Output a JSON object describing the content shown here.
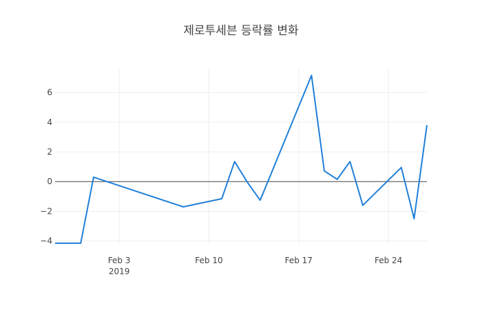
{
  "chart_data": {
    "type": "line",
    "title": "제로투세븐 등락률 변화",
    "xlabel": "",
    "ylabel": "",
    "x_ticks": [
      {
        "date": "2019-02-03",
        "label": "Feb 3",
        "sublabel": "2019"
      },
      {
        "date": "2019-02-10",
        "label": "Feb 10",
        "sublabel": ""
      },
      {
        "date": "2019-02-17",
        "label": "Feb 17",
        "sublabel": ""
      },
      {
        "date": "2019-02-24",
        "label": "Feb 24",
        "sublabel": ""
      }
    ],
    "y_ticks": [
      {
        "value": -4,
        "label": "−4"
      },
      {
        "value": -2,
        "label": "−2"
      },
      {
        "value": 0,
        "label": "0"
      },
      {
        "value": 2,
        "label": "2"
      },
      {
        "value": 4,
        "label": "4"
      },
      {
        "value": 6,
        "label": "6"
      }
    ],
    "xlim": [
      "2019-01-29",
      "2019-02-27"
    ],
    "ylim": [
      -4.2,
      7.6
    ],
    "grid": true,
    "zero_line": true,
    "line_color": "#1f7fd8",
    "series": [
      {
        "x": [
          "2019-01-29",
          "2019-01-31",
          "2019-02-01",
          "2019-02-08",
          "2019-02-11",
          "2019-02-12",
          "2019-02-13",
          "2019-02-14",
          "2019-02-18",
          "2019-02-19",
          "2019-02-20",
          "2019-02-21",
          "2019-02-22",
          "2019-02-25",
          "2019-02-26",
          "2019-02-27"
        ],
        "y": [
          -4.15,
          -4.15,
          0.3,
          -1.7,
          -1.15,
          1.35,
          -0.05,
          -1.25,
          7.15,
          0.72,
          0.15,
          1.35,
          -1.6,
          0.95,
          -2.5,
          3.8
        ]
      }
    ]
  }
}
